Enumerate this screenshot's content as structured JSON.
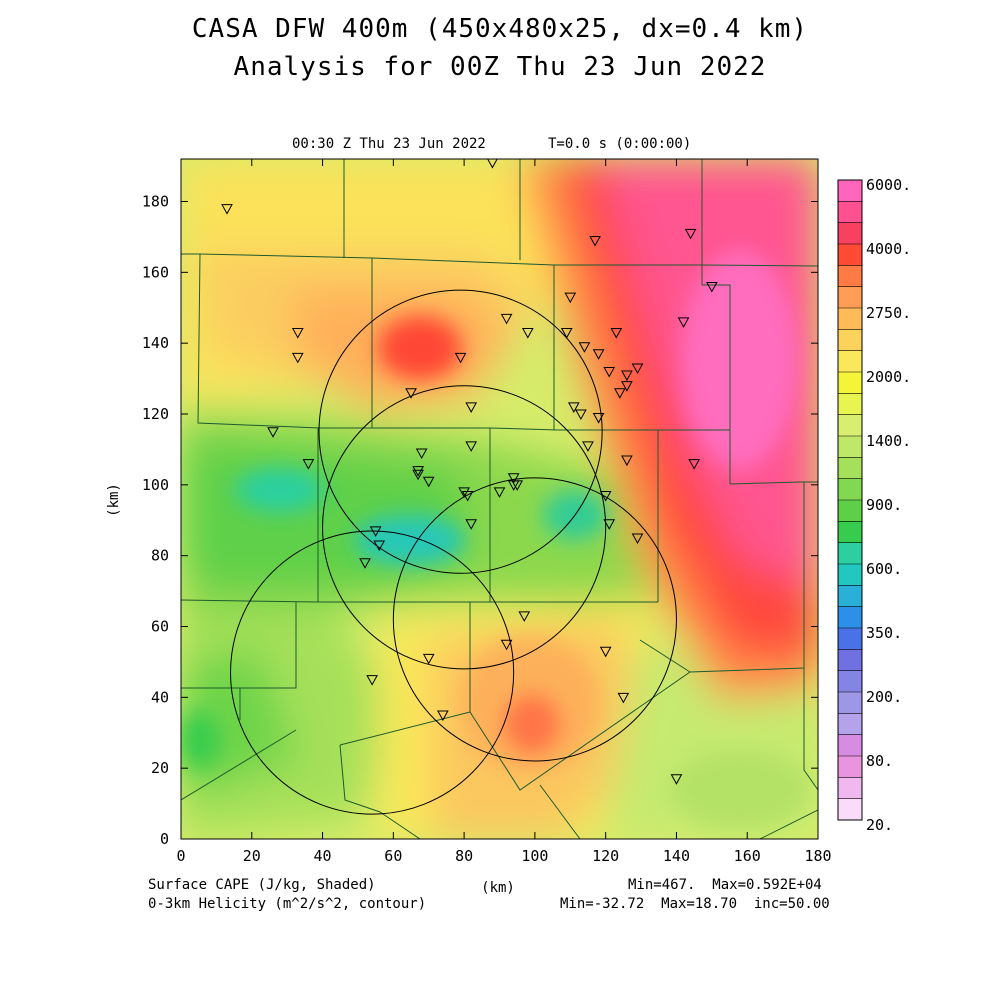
{
  "header": {
    "title_line1": "CASA DFW 400m (450x480x25, dx=0.4 km)",
    "title_line2": "Analysis for 00Z Thu 23 Jun 2022"
  },
  "subheader": {
    "valid_time": "00:30 Z Thu 23 Jun 2022",
    "model_time": "T=0.0 s (0:00:00)"
  },
  "axes": {
    "x_label": "(km)",
    "y_label": "(km)",
    "x_range": [
      0,
      180
    ],
    "y_range": [
      0,
      192
    ],
    "x_ticks": [
      "0",
      "20",
      "40",
      "60",
      "80",
      "100",
      "120",
      "140",
      "160",
      "180"
    ],
    "y_ticks": [
      "0",
      "20",
      "40",
      "60",
      "80",
      "100",
      "120",
      "140",
      "160",
      "180"
    ]
  },
  "colorbar": {
    "labels": [
      "6000.",
      "4000.",
      "2750.",
      "2000.",
      "1400.",
      "900.",
      "600.",
      "350.",
      "200.",
      "80.",
      "20."
    ],
    "colors": [
      "#ff66bb",
      "#ff5090",
      "#f84060",
      "#ff4a36",
      "#ff7a45",
      "#ff9c55",
      "#ffba5a",
      "#fad25c",
      "#fbe85a",
      "#f4f438",
      "#e8f450",
      "#d8ee70",
      "#c0e868",
      "#a6e05a",
      "#82d850",
      "#5ed048",
      "#38cc4e",
      "#2cd0a0",
      "#20c8c0",
      "#2ab0d8",
      "#2c90e8",
      "#4a72e8",
      "#7070e0",
      "#8484e4",
      "#9c98e6",
      "#b4a2ea",
      "#d68ce0",
      "#e894de",
      "#f0b8ee",
      "#fadcfa"
    ]
  },
  "field": {
    "name": "Surface CAPE (J/kg, Shaded)",
    "min_max": "Min=467.  Max=0.592E+04"
  },
  "contour": {
    "name": "0-3km Helicity (m^2/s^2, contour)",
    "min_max": "Min=-32.72  Max=18.70  inc=50.00"
  },
  "radars": [
    {
      "x": 79,
      "y": 115
    },
    {
      "x": 80,
      "y": 88
    },
    {
      "x": 100,
      "y": 62
    },
    {
      "x": 54,
      "y": 47
    }
  ],
  "radar_radius_km": 40,
  "stations": [
    [
      13,
      178
    ],
    [
      88,
      191
    ],
    [
      117,
      169
    ],
    [
      144,
      171
    ],
    [
      150,
      156
    ],
    [
      110,
      153
    ],
    [
      92,
      147
    ],
    [
      98,
      143
    ],
    [
      142,
      146
    ],
    [
      33,
      143
    ],
    [
      33,
      136
    ],
    [
      109,
      143
    ],
    [
      114,
      139
    ],
    [
      118,
      137
    ],
    [
      123,
      143
    ],
    [
      79,
      136
    ],
    [
      121,
      132
    ],
    [
      126,
      131
    ],
    [
      129,
      133
    ],
    [
      126,
      128
    ],
    [
      124,
      126
    ],
    [
      65,
      126
    ],
    [
      82,
      122
    ],
    [
      111,
      122
    ],
    [
      113,
      120
    ],
    [
      118,
      119
    ],
    [
      26,
      115
    ],
    [
      82,
      111
    ],
    [
      115,
      111
    ],
    [
      126,
      107
    ],
    [
      145,
      106
    ],
    [
      36,
      106
    ],
    [
      68,
      109
    ],
    [
      67,
      104
    ],
    [
      67,
      103
    ],
    [
      70,
      101
    ],
    [
      94,
      102
    ],
    [
      94,
      100
    ],
    [
      95,
      100
    ],
    [
      80,
      98
    ],
    [
      81,
      97
    ],
    [
      90,
      98
    ],
    [
      120,
      97
    ],
    [
      121,
      89
    ],
    [
      129,
      85
    ],
    [
      82,
      89
    ],
    [
      55,
      87
    ],
    [
      56,
      83
    ],
    [
      52,
      78
    ],
    [
      97,
      63
    ],
    [
      92,
      55
    ],
    [
      120,
      53
    ],
    [
      70,
      51
    ],
    [
      54,
      45
    ],
    [
      125,
      40
    ],
    [
      74,
      35
    ],
    [
      140,
      17
    ]
  ],
  "cape_centers": [
    {
      "name": "ne-high",
      "x": 160,
      "y": 125,
      "value": 5920
    },
    {
      "name": "nw-max",
      "x": 67,
      "y": 139,
      "value": 3200
    },
    {
      "name": "s-max",
      "x": 100,
      "y": 32,
      "value": 3100
    },
    {
      "name": "w-min",
      "x": 62,
      "y": 85,
      "value": 467
    },
    {
      "name": "c-min",
      "x": 110,
      "y": 92,
      "value": 720
    }
  ]
}
